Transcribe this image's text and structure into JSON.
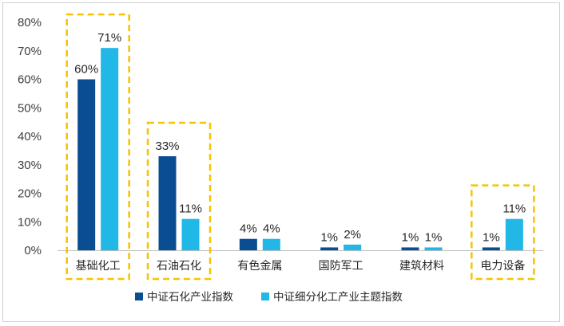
{
  "chart_data": {
    "type": "bar",
    "title": "",
    "xlabel": "",
    "ylabel": "",
    "ylim": [
      0,
      80
    ],
    "ytick_step": 10,
    "grid": false,
    "categories": [
      "基础化工",
      "石油石化",
      "有色金属",
      "国防军工",
      "建筑材料",
      "电力设备"
    ],
    "series": [
      {
        "name": "中证石化产业指数",
        "color": "#0b4d92",
        "values": [
          60,
          33,
          4,
          1,
          1,
          1
        ],
        "labels": [
          "60%",
          "33%",
          "4%",
          "1%",
          "1%",
          "1%"
        ]
      },
      {
        "name": "中证细分化工产业主题指数",
        "color": "#21b7e6",
        "values": [
          71,
          11,
          4,
          2,
          1,
          11
        ],
        "labels": [
          "71%",
          "11%",
          "4%",
          "2%",
          "1%",
          "11%"
        ]
      }
    ],
    "highlighted_categories": [
      "基础化工",
      "石油石化",
      "电力设备"
    ],
    "highlight_color": "#f5c400",
    "legend_position": "bottom-center"
  }
}
